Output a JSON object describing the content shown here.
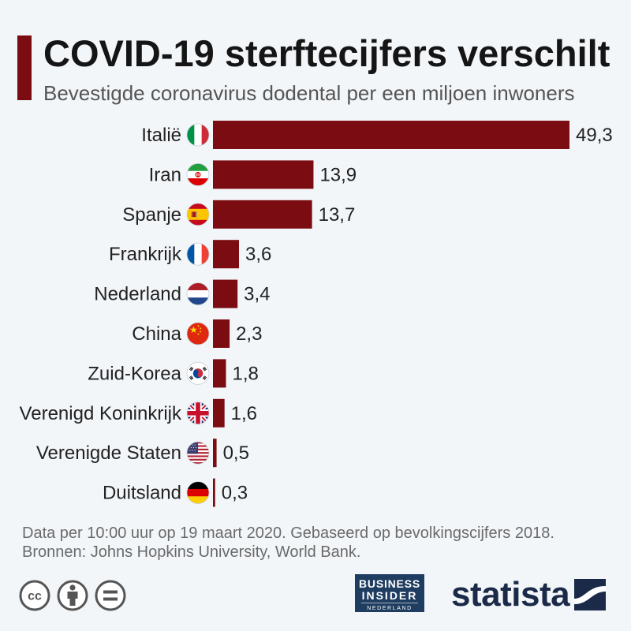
{
  "header": {
    "accent_color": "#7a0c12"
  },
  "chart_data": {
    "type": "bar",
    "orientation": "horizontal",
    "title": "COVID-19 sterftecijfers verschilt",
    "subtitle": "Bevestigde coronavirus dodental per een miljoen inwoners",
    "xlabel": "",
    "ylabel": "",
    "categories": [
      "Italië",
      "Iran",
      "Spanje",
      "Frankrijk",
      "Nederland",
      "China",
      "Zuid-Korea",
      "Verenigd Koninkrijk",
      "Verenigde Staten",
      "Duitsland"
    ],
    "values": [
      49.3,
      13.9,
      13.7,
      3.6,
      3.4,
      2.3,
      1.8,
      1.6,
      0.5,
      0.3
    ],
    "value_labels": [
      "49,3",
      "13,9",
      "13,7",
      "3,6",
      "3,4",
      "2,3",
      "1,8",
      "1,6",
      "0,5",
      "0,3"
    ],
    "flag_icons": [
      "italy-flag",
      "iran-flag",
      "spain-flag",
      "france-flag",
      "netherlands-flag",
      "china-flag",
      "south-korea-flag",
      "uk-flag",
      "usa-flag",
      "germany-flag"
    ],
    "xlim": [
      0,
      49.3
    ],
    "bar_color": "#7a0c12",
    "grid": false,
    "legend": "none"
  },
  "footer": {
    "note": "Data per 10:00 uur op 19 maart 2020. Gebaseerd op bevolkingscijfers 2018.",
    "sources": "Bronnen: Johns Hopkins University, World Bank."
  },
  "license": {
    "cc_label": "cc",
    "icons": [
      "creative-commons-icon",
      "attribution-icon",
      "no-derivatives-icon"
    ]
  },
  "logos": {
    "business_insider": {
      "line1": "BUSINESS",
      "line2": "INSIDER",
      "edition": "NEDERLAND",
      "color": "#1e3d60"
    },
    "statista": {
      "wordmark": "statista",
      "color": "#1a2a48"
    }
  }
}
